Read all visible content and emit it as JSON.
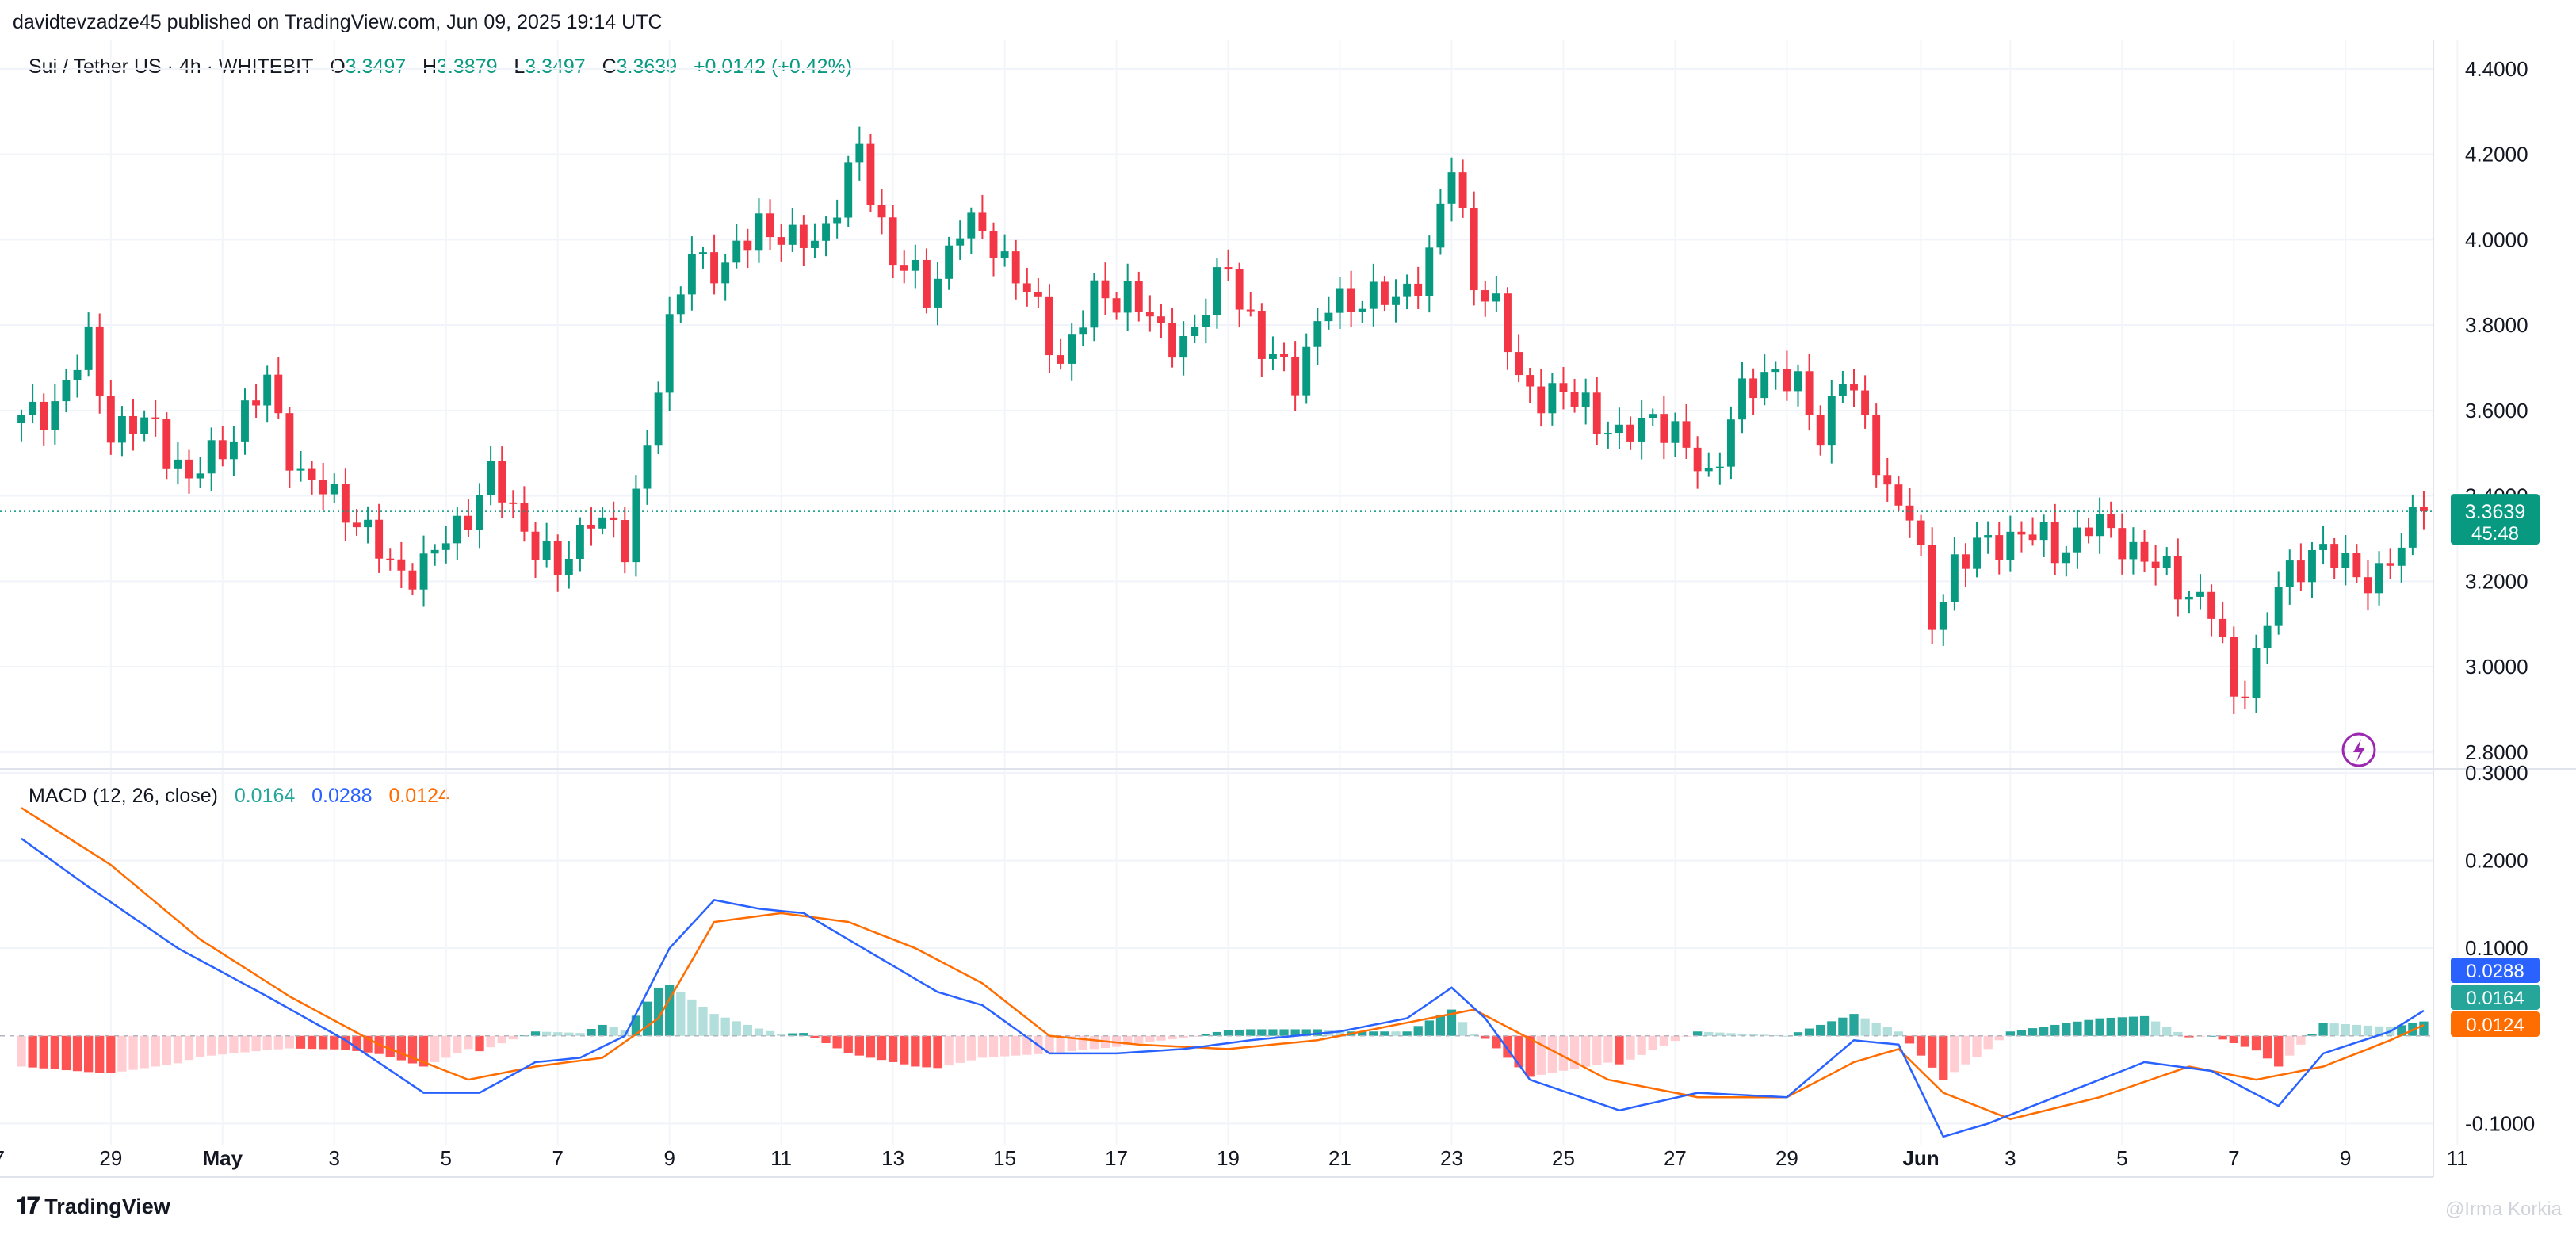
{
  "header": {
    "published": "davidtevzadze45 published on TradingView.com, Jun 09, 2025 19:14 UTC"
  },
  "legend": {
    "symbol": "Sui / Tether US · 4h · WHITEBIT",
    "o_label": "O",
    "o": "3.3497",
    "h_label": "H",
    "h": "3.3879",
    "l_label": "L",
    "l": "3.3497",
    "c_label": "C",
    "c": "3.3639",
    "change": "+0.0142 (+0.42%)"
  },
  "macd_legend": {
    "name": "MACD (12, 26, close)",
    "hist": "0.0164",
    "macd": "0.0288",
    "signal": "0.0124"
  },
  "price_badge": {
    "price": "3.3639",
    "countdown": "45:48"
  },
  "macd_badges": {
    "macd": "0.0288",
    "hist": "0.0164",
    "signal": "0.0124"
  },
  "footer": {
    "logo_text": "TradingView",
    "watermark": "@Irma Korkia"
  },
  "colors": {
    "up": "#089981",
    "down": "#f23645",
    "macd": "#2962ff",
    "signal": "#ff6d00",
    "hist_up": "#26a69a",
    "hist_up_light": "#b2dfdb",
    "hist_down": "#ff5252",
    "hist_down_light": "#ffcdd2"
  },
  "chart_data": [
    {
      "type": "candlestick",
      "title": "Sui / Tether US · 4h · WHITEBIT",
      "y_ticks": [
        "4.4000",
        "4.2000",
        "4.0000",
        "3.8000",
        "3.6000",
        "3.4000",
        "3.2000",
        "3.0000",
        "2.8000"
      ],
      "ylim": [
        2.77,
        4.45
      ],
      "x_ticks": [
        "7",
        "29",
        "May",
        "3",
        "5",
        "7",
        "9",
        "11",
        "13",
        "15",
        "17",
        "19",
        "21",
        "23",
        "25",
        "27",
        "29",
        "Jun",
        "3",
        "5",
        "7",
        "9",
        "11"
      ],
      "last_price": 3.3639,
      "price_path": [
        {
          "x": 0,
          "y": 3.57
        },
        {
          "x": 3,
          "y": 3.62
        },
        {
          "x": 6,
          "y": 3.75
        },
        {
          "x": 8,
          "y": 3.56
        },
        {
          "x": 12,
          "y": 3.56
        },
        {
          "x": 15,
          "y": 3.43
        },
        {
          "x": 18,
          "y": 3.52
        },
        {
          "x": 22,
          "y": 3.66
        },
        {
          "x": 25,
          "y": 3.44
        },
        {
          "x": 29,
          "y": 3.38
        },
        {
          "x": 33,
          "y": 3.23
        },
        {
          "x": 36,
          "y": 3.23
        },
        {
          "x": 39,
          "y": 3.33
        },
        {
          "x": 42,
          "y": 3.44
        },
        {
          "x": 45,
          "y": 3.33
        },
        {
          "x": 48,
          "y": 3.21
        },
        {
          "x": 51,
          "y": 3.37
        },
        {
          "x": 54,
          "y": 3.27
        },
        {
          "x": 57,
          "y": 3.67
        },
        {
          "x": 60,
          "y": 3.98
        },
        {
          "x": 63,
          "y": 3.92
        },
        {
          "x": 66,
          "y": 4.05
        },
        {
          "x": 69,
          "y": 3.98
        },
        {
          "x": 72,
          "y": 4.03
        },
        {
          "x": 75,
          "y": 4.2
        },
        {
          "x": 78,
          "y": 3.96
        },
        {
          "x": 81,
          "y": 3.87
        },
        {
          "x": 84,
          "y": 4.03
        },
        {
          "x": 87,
          "y": 4.0
        },
        {
          "x": 90,
          "y": 3.87
        },
        {
          "x": 93,
          "y": 3.72
        },
        {
          "x": 96,
          "y": 3.86
        },
        {
          "x": 99,
          "y": 3.88
        },
        {
          "x": 102,
          "y": 3.77
        },
        {
          "x": 105,
          "y": 3.78
        },
        {
          "x": 108,
          "y": 3.95
        },
        {
          "x": 111,
          "y": 3.73
        },
        {
          "x": 114,
          "y": 3.69
        },
        {
          "x": 117,
          "y": 3.84
        },
        {
          "x": 120,
          "y": 3.87
        },
        {
          "x": 123,
          "y": 3.85
        },
        {
          "x": 126,
          "y": 3.96
        },
        {
          "x": 128,
          "y": 4.17
        },
        {
          "x": 130,
          "y": 3.92
        },
        {
          "x": 132,
          "y": 3.83
        },
        {
          "x": 134,
          "y": 3.67
        },
        {
          "x": 137,
          "y": 3.63
        },
        {
          "x": 140,
          "y": 3.62
        },
        {
          "x": 143,
          "y": 3.52
        },
        {
          "x": 146,
          "y": 3.6
        },
        {
          "x": 148,
          "y": 3.53
        },
        {
          "x": 151,
          "y": 3.45
        },
        {
          "x": 154,
          "y": 3.63
        },
        {
          "x": 157,
          "y": 3.71
        },
        {
          "x": 159,
          "y": 3.64
        },
        {
          "x": 161,
          "y": 3.54
        },
        {
          "x": 163,
          "y": 3.7
        },
        {
          "x": 165,
          "y": 3.55
        },
        {
          "x": 167,
          "y": 3.42
        },
        {
          "x": 169,
          "y": 3.36
        },
        {
          "x": 171,
          "y": 3.1
        },
        {
          "x": 173,
          "y": 3.25
        },
        {
          "x": 176,
          "y": 3.28
        },
        {
          "x": 179,
          "y": 3.32
        },
        {
          "x": 182,
          "y": 3.27
        },
        {
          "x": 185,
          "y": 3.33
        },
        {
          "x": 188,
          "y": 3.3
        },
        {
          "x": 191,
          "y": 3.23
        },
        {
          "x": 194,
          "y": 3.18
        },
        {
          "x": 196,
          "y": 3.13
        },
        {
          "x": 198,
          "y": 2.93
        },
        {
          "x": 200,
          "y": 3.02
        },
        {
          "x": 202,
          "y": 3.18
        },
        {
          "x": 205,
          "y": 3.28
        },
        {
          "x": 208,
          "y": 3.23
        },
        {
          "x": 211,
          "y": 3.21
        },
        {
          "x": 213,
          "y": 3.27
        },
        {
          "x": 214,
          "y": 3.3497
        },
        {
          "x": 215,
          "y": 3.3639
        }
      ]
    },
    {
      "type": "macd",
      "title": "MACD (12, 26, close)",
      "y_ticks": [
        "0.3000",
        "0.2000",
        "0.1000",
        "-0.1000"
      ],
      "ylim": [
        -0.125,
        0.3
      ],
      "macd_path": [
        {
          "x": 0,
          "y": 0.225
        },
        {
          "x": 6,
          "y": 0.17
        },
        {
          "x": 14,
          "y": 0.1
        },
        {
          "x": 22,
          "y": 0.045
        },
        {
          "x": 29,
          "y": -0.005
        },
        {
          "x": 36,
          "y": -0.065
        },
        {
          "x": 41,
          "y": -0.065
        },
        {
          "x": 46,
          "y": -0.03
        },
        {
          "x": 50,
          "y": -0.025
        },
        {
          "x": 54,
          "y": 0.0
        },
        {
          "x": 58,
          "y": 0.1
        },
        {
          "x": 62,
          "y": 0.155
        },
        {
          "x": 66,
          "y": 0.145
        },
        {
          "x": 70,
          "y": 0.14
        },
        {
          "x": 74,
          "y": 0.11
        },
        {
          "x": 78,
          "y": 0.08
        },
        {
          "x": 82,
          "y": 0.05
        },
        {
          "x": 86,
          "y": 0.035
        },
        {
          "x": 92,
          "y": -0.02
        },
        {
          "x": 98,
          "y": -0.02
        },
        {
          "x": 104,
          "y": -0.015
        },
        {
          "x": 110,
          "y": -0.005
        },
        {
          "x": 118,
          "y": 0.005
        },
        {
          "x": 124,
          "y": 0.02
        },
        {
          "x": 128,
          "y": 0.055
        },
        {
          "x": 131,
          "y": 0.02
        },
        {
          "x": 135,
          "y": -0.05
        },
        {
          "x": 143,
          "y": -0.085
        },
        {
          "x": 150,
          "y": -0.065
        },
        {
          "x": 158,
          "y": -0.07
        },
        {
          "x": 164,
          "y": -0.005
        },
        {
          "x": 168,
          "y": -0.01
        },
        {
          "x": 172,
          "y": -0.115
        },
        {
          "x": 176,
          "y": -0.1
        },
        {
          "x": 184,
          "y": -0.06
        },
        {
          "x": 190,
          "y": -0.03
        },
        {
          "x": 196,
          "y": -0.04
        },
        {
          "x": 202,
          "y": -0.08
        },
        {
          "x": 206,
          "y": -0.02
        },
        {
          "x": 212,
          "y": 0.005
        },
        {
          "x": 215,
          "y": 0.0288
        }
      ],
      "signal_path": [
        {
          "x": 0,
          "y": 0.26
        },
        {
          "x": 8,
          "y": 0.195
        },
        {
          "x": 16,
          "y": 0.11
        },
        {
          "x": 24,
          "y": 0.045
        },
        {
          "x": 32,
          "y": -0.01
        },
        {
          "x": 40,
          "y": -0.05
        },
        {
          "x": 46,
          "y": -0.035
        },
        {
          "x": 52,
          "y": -0.025
        },
        {
          "x": 57,
          "y": 0.02
        },
        {
          "x": 62,
          "y": 0.13
        },
        {
          "x": 68,
          "y": 0.14
        },
        {
          "x": 74,
          "y": 0.13
        },
        {
          "x": 80,
          "y": 0.1
        },
        {
          "x": 86,
          "y": 0.06
        },
        {
          "x": 92,
          "y": 0.0
        },
        {
          "x": 100,
          "y": -0.01
        },
        {
          "x": 108,
          "y": -0.015
        },
        {
          "x": 116,
          "y": -0.005
        },
        {
          "x": 124,
          "y": 0.015
        },
        {
          "x": 130,
          "y": 0.03
        },
        {
          "x": 136,
          "y": -0.01
        },
        {
          "x": 142,
          "y": -0.05
        },
        {
          "x": 150,
          "y": -0.07
        },
        {
          "x": 158,
          "y": -0.07
        },
        {
          "x": 164,
          "y": -0.03
        },
        {
          "x": 168,
          "y": -0.015
        },
        {
          "x": 172,
          "y": -0.065
        },
        {
          "x": 178,
          "y": -0.095
        },
        {
          "x": 186,
          "y": -0.07
        },
        {
          "x": 194,
          "y": -0.035
        },
        {
          "x": 200,
          "y": -0.05
        },
        {
          "x": 206,
          "y": -0.035
        },
        {
          "x": 212,
          "y": -0.005
        },
        {
          "x": 215,
          "y": 0.0124
        }
      ]
    }
  ]
}
